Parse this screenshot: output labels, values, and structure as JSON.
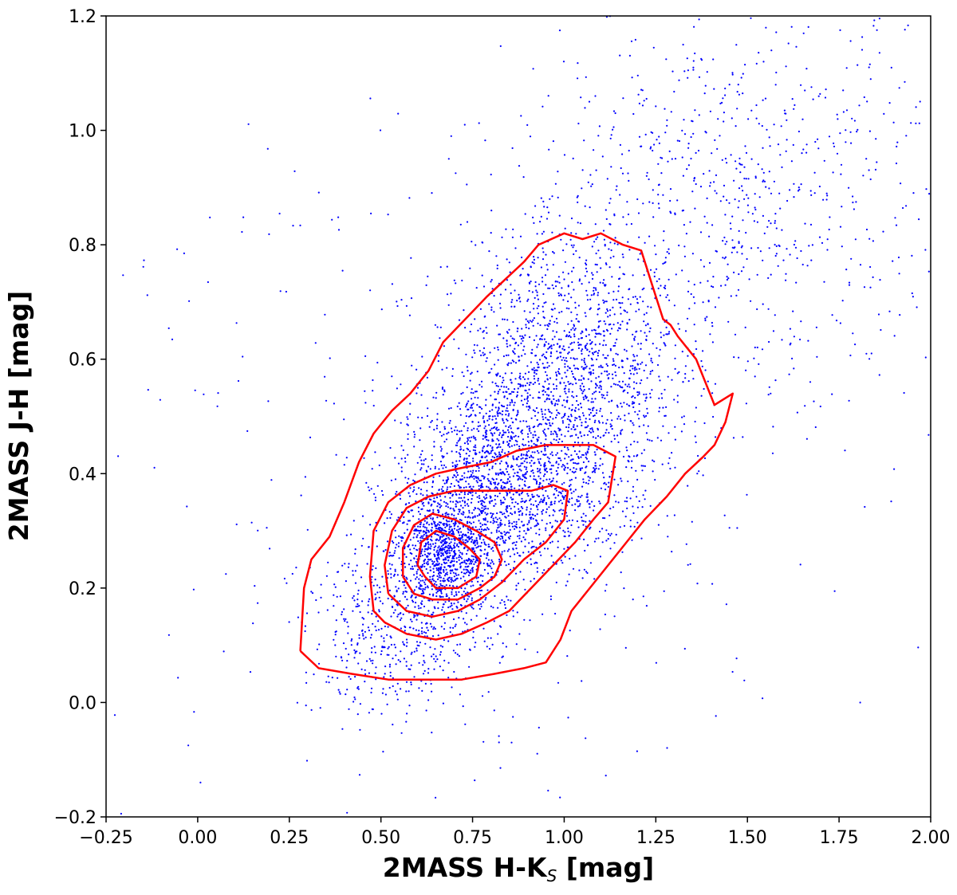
{
  "chart_data": {
    "type": "scatter",
    "title": "",
    "xlabel": "2MASS H-K",
    "xlabel_subscript": "S",
    "xlabel_unit": " [mag]",
    "ylabel": "2MASS J-H [mag]",
    "xlim": [
      -0.25,
      2.0
    ],
    "ylim": [
      -0.2,
      1.2
    ],
    "grid": false,
    "x_ticks": [
      -0.25,
      0.0,
      0.25,
      0.5,
      0.75,
      1.0,
      1.25,
      1.5,
      1.75,
      2.0
    ],
    "x_tick_labels": [
      "−0.25",
      "0.00",
      "0.25",
      "0.50",
      "0.75",
      "1.00",
      "1.25",
      "1.50",
      "1.75",
      "2.00"
    ],
    "y_ticks": [
      -0.2,
      0.0,
      0.2,
      0.4,
      0.6,
      0.8,
      1.0,
      1.2
    ],
    "y_tick_labels": [
      "−0.2",
      "0.0",
      "0.2",
      "0.4",
      "0.6",
      "0.8",
      "1.0",
      "1.2"
    ],
    "colors": {
      "points": "#0000ff",
      "contours": "#ff0000",
      "frame": "#000000"
    },
    "series": [
      {
        "kind": "points",
        "description_of_distribution": "dense cloud of stars centered near (0.67, 0.25), elongated along a reddening band toward upper right",
        "clusters": [
          {
            "center": [
              0.67,
              0.26
            ],
            "spread": [
              0.07,
              0.05
            ],
            "count": 900
          },
          {
            "center": [
              0.82,
              0.38
            ],
            "spread": [
              0.14,
              0.09
            ],
            "count": 1600
          },
          {
            "center": [
              1.02,
              0.57
            ],
            "spread": [
              0.15,
              0.12
            ],
            "count": 1500
          },
          {
            "center": [
              1.45,
              0.88
            ],
            "spread": [
              0.3,
              0.17
            ],
            "count": 800
          },
          {
            "center": [
              0.55,
              0.12
            ],
            "spread": [
              0.13,
              0.07
            ],
            "count": 500
          },
          {
            "center": [
              0.75,
              0.45
            ],
            "spread": [
              0.55,
              0.35
            ],
            "count": 350
          }
        ]
      },
      {
        "kind": "contours",
        "levels": [
          [
            [
              0.28,
              0.09
            ],
            [
              0.29,
              0.2
            ],
            [
              0.31,
              0.25
            ],
            [
              0.36,
              0.29
            ],
            [
              0.4,
              0.35
            ],
            [
              0.44,
              0.42
            ],
            [
              0.48,
              0.47
            ],
            [
              0.53,
              0.51
            ],
            [
              0.58,
              0.54
            ],
            [
              0.63,
              0.58
            ],
            [
              0.67,
              0.63
            ],
            [
              0.73,
              0.67
            ],
            [
              0.79,
              0.71
            ],
            [
              0.84,
              0.74
            ],
            [
              0.89,
              0.77
            ],
            [
              0.93,
              0.8
            ],
            [
              1.0,
              0.82
            ],
            [
              1.05,
              0.81
            ],
            [
              1.1,
              0.82
            ],
            [
              1.16,
              0.8
            ],
            [
              1.21,
              0.79
            ],
            [
              1.24,
              0.73
            ],
            [
              1.27,
              0.67
            ],
            [
              1.29,
              0.66
            ],
            [
              1.31,
              0.64
            ],
            [
              1.36,
              0.6
            ],
            [
              1.41,
              0.52
            ],
            [
              1.46,
              0.54
            ],
            [
              1.44,
              0.49
            ],
            [
              1.41,
              0.45
            ],
            [
              1.38,
              0.43
            ],
            [
              1.33,
              0.4
            ],
            [
              1.28,
              0.36
            ],
            [
              1.22,
              0.32
            ],
            [
              1.17,
              0.28
            ],
            [
              1.12,
              0.24
            ],
            [
              1.07,
              0.2
            ],
            [
              1.02,
              0.16
            ],
            [
              0.99,
              0.11
            ],
            [
              0.95,
              0.07
            ],
            [
              0.89,
              0.06
            ],
            [
              0.81,
              0.05
            ],
            [
              0.72,
              0.04
            ],
            [
              0.62,
              0.04
            ],
            [
              0.52,
              0.04
            ],
            [
              0.42,
              0.05
            ],
            [
              0.33,
              0.06
            ],
            [
              0.28,
              0.09
            ]
          ],
          [
            [
              0.48,
              0.16
            ],
            [
              0.47,
              0.22
            ],
            [
              0.48,
              0.3
            ],
            [
              0.52,
              0.35
            ],
            [
              0.58,
              0.38
            ],
            [
              0.65,
              0.4
            ],
            [
              0.72,
              0.41
            ],
            [
              0.8,
              0.42
            ],
            [
              0.87,
              0.44
            ],
            [
              0.95,
              0.45
            ],
            [
              1.02,
              0.45
            ],
            [
              1.08,
              0.45
            ],
            [
              1.14,
              0.43
            ],
            [
              1.13,
              0.39
            ],
            [
              1.12,
              0.35
            ],
            [
              1.08,
              0.32
            ],
            [
              1.03,
              0.28
            ],
            [
              0.97,
              0.24
            ],
            [
              0.91,
              0.2
            ],
            [
              0.85,
              0.16
            ],
            [
              0.79,
              0.14
            ],
            [
              0.72,
              0.12
            ],
            [
              0.65,
              0.11
            ],
            [
              0.57,
              0.12
            ],
            [
              0.51,
              0.14
            ],
            [
              0.48,
              0.16
            ]
          ],
          [
            [
              0.52,
              0.19
            ],
            [
              0.51,
              0.24
            ],
            [
              0.53,
              0.3
            ],
            [
              0.57,
              0.34
            ],
            [
              0.63,
              0.36
            ],
            [
              0.7,
              0.37
            ],
            [
              0.77,
              0.37
            ],
            [
              0.84,
              0.37
            ],
            [
              0.91,
              0.37
            ],
            [
              0.97,
              0.38
            ],
            [
              1.01,
              0.37
            ],
            [
              1.0,
              0.32
            ],
            [
              0.95,
              0.28
            ],
            [
              0.89,
              0.25
            ],
            [
              0.83,
              0.21
            ],
            [
              0.77,
              0.18
            ],
            [
              0.71,
              0.16
            ],
            [
              0.64,
              0.15
            ],
            [
              0.57,
              0.16
            ],
            [
              0.52,
              0.19
            ]
          ],
          [
            [
              0.56,
              0.22
            ],
            [
              0.56,
              0.27
            ],
            [
              0.59,
              0.31
            ],
            [
              0.64,
              0.33
            ],
            [
              0.7,
              0.32
            ],
            [
              0.76,
              0.3
            ],
            [
              0.81,
              0.28
            ],
            [
              0.83,
              0.25
            ],
            [
              0.81,
              0.22
            ],
            [
              0.77,
              0.2
            ],
            [
              0.71,
              0.18
            ],
            [
              0.64,
              0.18
            ],
            [
              0.59,
              0.19
            ],
            [
              0.56,
              0.22
            ]
          ],
          [
            [
              0.6,
              0.24
            ],
            [
              0.61,
              0.28
            ],
            [
              0.65,
              0.3
            ],
            [
              0.7,
              0.29
            ],
            [
              0.74,
              0.27
            ],
            [
              0.77,
              0.25
            ],
            [
              0.76,
              0.22
            ],
            [
              0.71,
              0.2
            ],
            [
              0.65,
              0.2
            ],
            [
              0.62,
              0.22
            ],
            [
              0.6,
              0.24
            ]
          ]
        ]
      }
    ]
  }
}
